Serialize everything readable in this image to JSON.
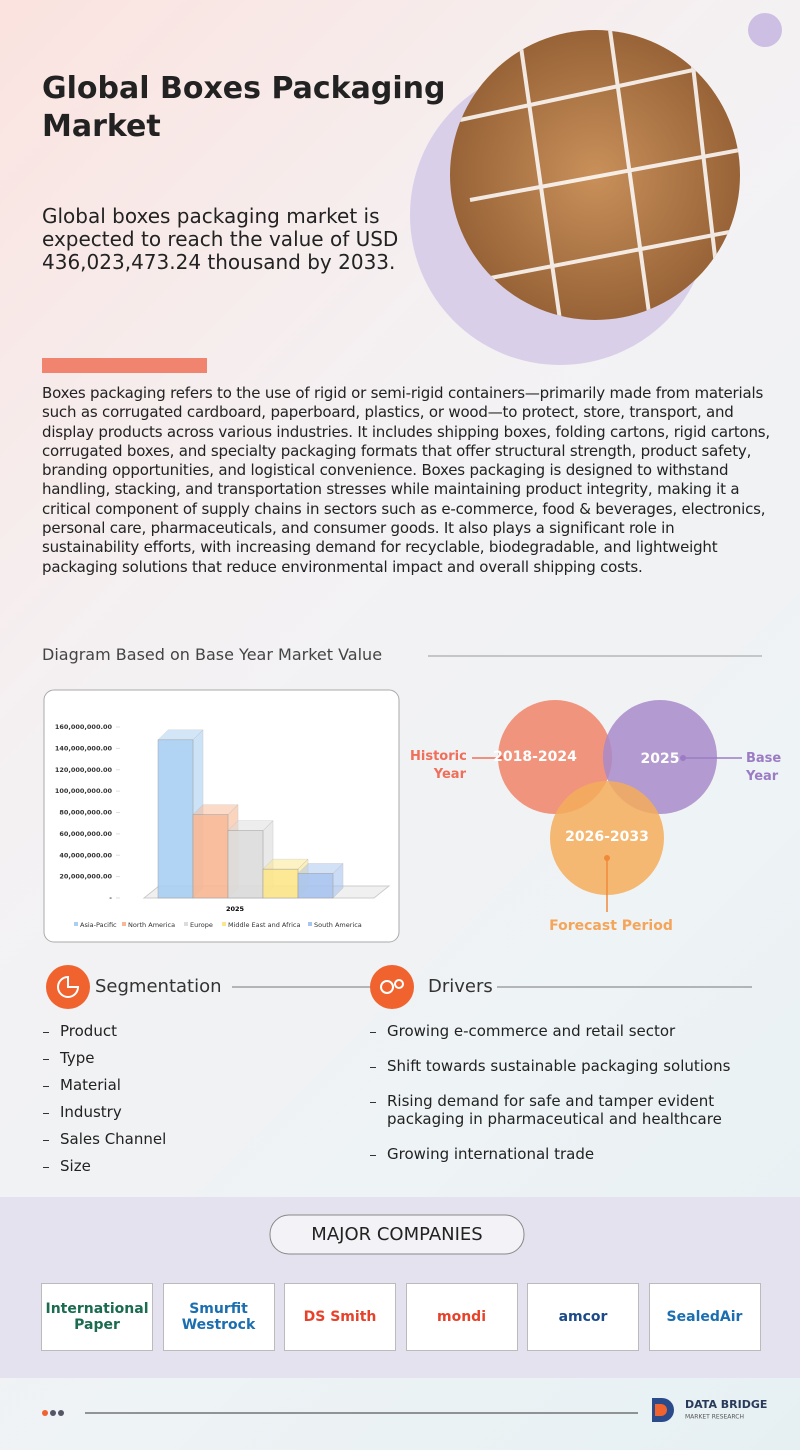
{
  "header": {
    "title": "Global Boxes Packaging Market",
    "subtitle": "Global boxes packaging market is expected to reach the value of USD 436,023,473.24 thousand by 2033."
  },
  "description": "Boxes packaging refers to the use of rigid or semi-rigid containers—primarily made from materials such as corrugated cardboard, paperboard, plastics, or wood—to protect, store, transport, and display products across various industries. It includes shipping boxes, folding cartons, rigid cartons, corrugated boxes, and specialty packaging formats that offer structural strength, product safety, branding opportunities, and logistical convenience. Boxes packaging is designed to withstand handling, stacking, and transportation stresses while maintaining product integrity, making it a critical component of supply chains in sectors such as e-commerce, food & beverages, electronics, personal care, pharmaceuticals, and consumer goods. It also plays a significant role in sustainability efforts, with increasing demand for recyclable, biodegradable, and lightweight packaging solutions that reduce environmental impact and overall shipping costs.",
  "diagram": {
    "heading": "Diagram Based on Base Year Market Value"
  },
  "chart_data": {
    "type": "bar",
    "categories": [
      "2025"
    ],
    "series": [
      {
        "name": "Asia-Pacific",
        "color": "#a9cff3",
        "values": [
          148000000
        ]
      },
      {
        "name": "North America",
        "color": "#f9b893",
        "values": [
          78000000
        ]
      },
      {
        "name": "Europe",
        "color": "#dcdcdc",
        "values": [
          63000000
        ]
      },
      {
        "name": "Middle East and Africa",
        "color": "#fde68a",
        "values": [
          27000000
        ]
      },
      {
        "name": "South America",
        "color": "#a8c4f0",
        "values": [
          23000000
        ]
      }
    ],
    "ylim": [
      0,
      160000000
    ],
    "yticks": [
      {
        "value": 0,
        "label": "-"
      },
      {
        "value": 20000000,
        "label": "20,000,000.00"
      },
      {
        "value": 40000000,
        "label": "40,000,000.00"
      },
      {
        "value": 60000000,
        "label": "60,000,000.00"
      },
      {
        "value": 80000000,
        "label": "80,000,000.00"
      },
      {
        "value": 100000000,
        "label": "100,000,000.00"
      },
      {
        "value": 120000000,
        "label": "120,000,000.00"
      },
      {
        "value": 140000000,
        "label": "140,000,000.00"
      },
      {
        "value": 160000000,
        "label": "160,000,000.00"
      }
    ],
    "grid": false
  },
  "venn": {
    "historic_period": "2018-2024",
    "base_year": "2025",
    "forecast_period": "2026-2033",
    "historic_label": "Historic Year",
    "base_label": "Base Year",
    "forecast_label": "Forecast Period"
  },
  "segmentation": {
    "heading": "Segmentation",
    "items": [
      "Product",
      "Type",
      "Material",
      "Industry",
      "Sales Channel",
      "Size"
    ]
  },
  "drivers": {
    "heading": "Drivers",
    "items": [
      "Growing e-commerce and retail sector",
      "Shift towards sustainable packaging solutions",
      "Rising demand for safe and tamper evident packaging in pharmaceutical and healthcare",
      "Growing international trade"
    ]
  },
  "companies": {
    "heading": "MAJOR COMPANIES",
    "names": [
      "International Paper",
      "Smurfit Westrock",
      "DS Smith",
      "mondi",
      "amcor",
      "SealedAir"
    ]
  },
  "footer": {
    "brand": "DATA BRIDGE",
    "tagline": "MARKET RESEARCH"
  }
}
